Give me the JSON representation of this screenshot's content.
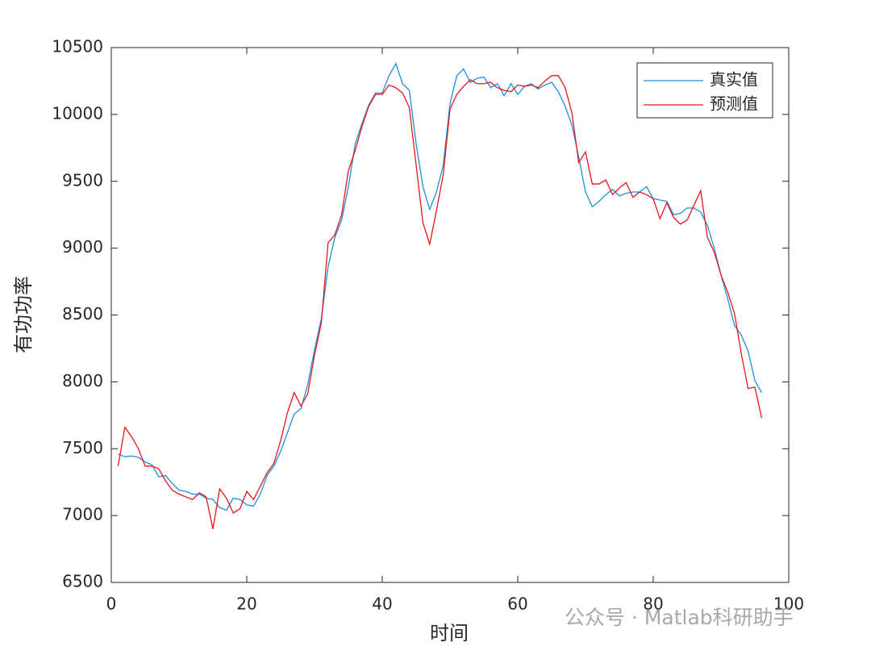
{
  "chart_data": {
    "type": "line",
    "xlabel": "时间",
    "ylabel": "有功功率",
    "x": [
      1,
      2,
      3,
      4,
      5,
      6,
      7,
      8,
      9,
      10,
      11,
      12,
      13,
      14,
      15,
      16,
      17,
      18,
      19,
      20,
      21,
      22,
      23,
      24,
      25,
      26,
      27,
      28,
      29,
      30,
      31,
      32,
      33,
      34,
      35,
      36,
      37,
      38,
      39,
      40,
      41,
      42,
      43,
      44,
      45,
      46,
      47,
      48,
      49,
      50,
      51,
      52,
      53,
      54,
      55,
      56,
      57,
      58,
      59,
      60,
      61,
      62,
      63,
      64,
      65,
      66,
      67,
      68,
      69,
      70,
      71,
      72,
      73,
      74,
      75,
      76,
      77,
      78,
      79,
      80,
      81,
      82,
      83,
      84,
      85,
      86,
      87,
      88,
      89,
      90,
      91,
      92,
      93,
      94,
      95,
      96
    ],
    "series": [
      {
        "name": "真实值",
        "color": "#1f8fdc",
        "values": [
          7460,
          7440,
          7445,
          7435,
          7400,
          7380,
          7290,
          7300,
          7240,
          7190,
          7180,
          7160,
          7160,
          7130,
          7120,
          7060,
          7040,
          7130,
          7120,
          7080,
          7070,
          7160,
          7300,
          7370,
          7480,
          7620,
          7760,
          7800,
          7980,
          8240,
          8470,
          8860,
          9080,
          9210,
          9460,
          9780,
          9930,
          10070,
          10160,
          10160,
          10290,
          10380,
          10230,
          10180,
          9780,
          9460,
          9290,
          9420,
          9620,
          10080,
          10290,
          10340,
          10240,
          10270,
          10280,
          10200,
          10230,
          10140,
          10230,
          10150,
          10210,
          10230,
          10190,
          10220,
          10240,
          10170,
          10060,
          9920,
          9680,
          9420,
          9310,
          9350,
          9400,
          9440,
          9390,
          9410,
          9420,
          9420,
          9460,
          9370,
          9360,
          9350,
          9250,
          9260,
          9300,
          9300,
          9270,
          9170,
          9000,
          8800,
          8620,
          8420,
          8350,
          8230,
          8010,
          7920
        ]
      },
      {
        "name": "预测值",
        "color": "#e8141e",
        "values": [
          7370,
          7660,
          7590,
          7500,
          7370,
          7370,
          7350,
          7260,
          7190,
          7160,
          7140,
          7120,
          7170,
          7140,
          6900,
          7200,
          7130,
          7020,
          7050,
          7180,
          7120,
          7220,
          7320,
          7390,
          7560,
          7770,
          7920,
          7820,
          7910,
          8200,
          8440,
          9040,
          9100,
          9250,
          9580,
          9730,
          9910,
          10060,
          10150,
          10150,
          10220,
          10200,
          10160,
          10050,
          9620,
          9190,
          9030,
          9280,
          9550,
          10040,
          10150,
          10210,
          10260,
          10230,
          10230,
          10240,
          10200,
          10180,
          10170,
          10220,
          10210,
          10220,
          10200,
          10250,
          10290,
          10290,
          10200,
          10010,
          9640,
          9720,
          9480,
          9480,
          9510,
          9400,
          9450,
          9490,
          9380,
          9420,
          9400,
          9370,
          9220,
          9340,
          9230,
          9180,
          9210,
          9320,
          9430,
          9080,
          8970,
          8800,
          8670,
          8510,
          8210,
          7950,
          7960,
          7730
        ]
      }
    ],
    "xlim": [
      0,
      100
    ],
    "xticks": [
      0,
      20,
      40,
      60,
      80,
      100
    ],
    "ylim": [
      6500,
      10500
    ],
    "yticks": [
      6500,
      7000,
      7500,
      8000,
      8500,
      9000,
      9500,
      10000,
      10500
    ],
    "legend": "northeast",
    "watermark": "公众号 · Matlab科研助手"
  }
}
